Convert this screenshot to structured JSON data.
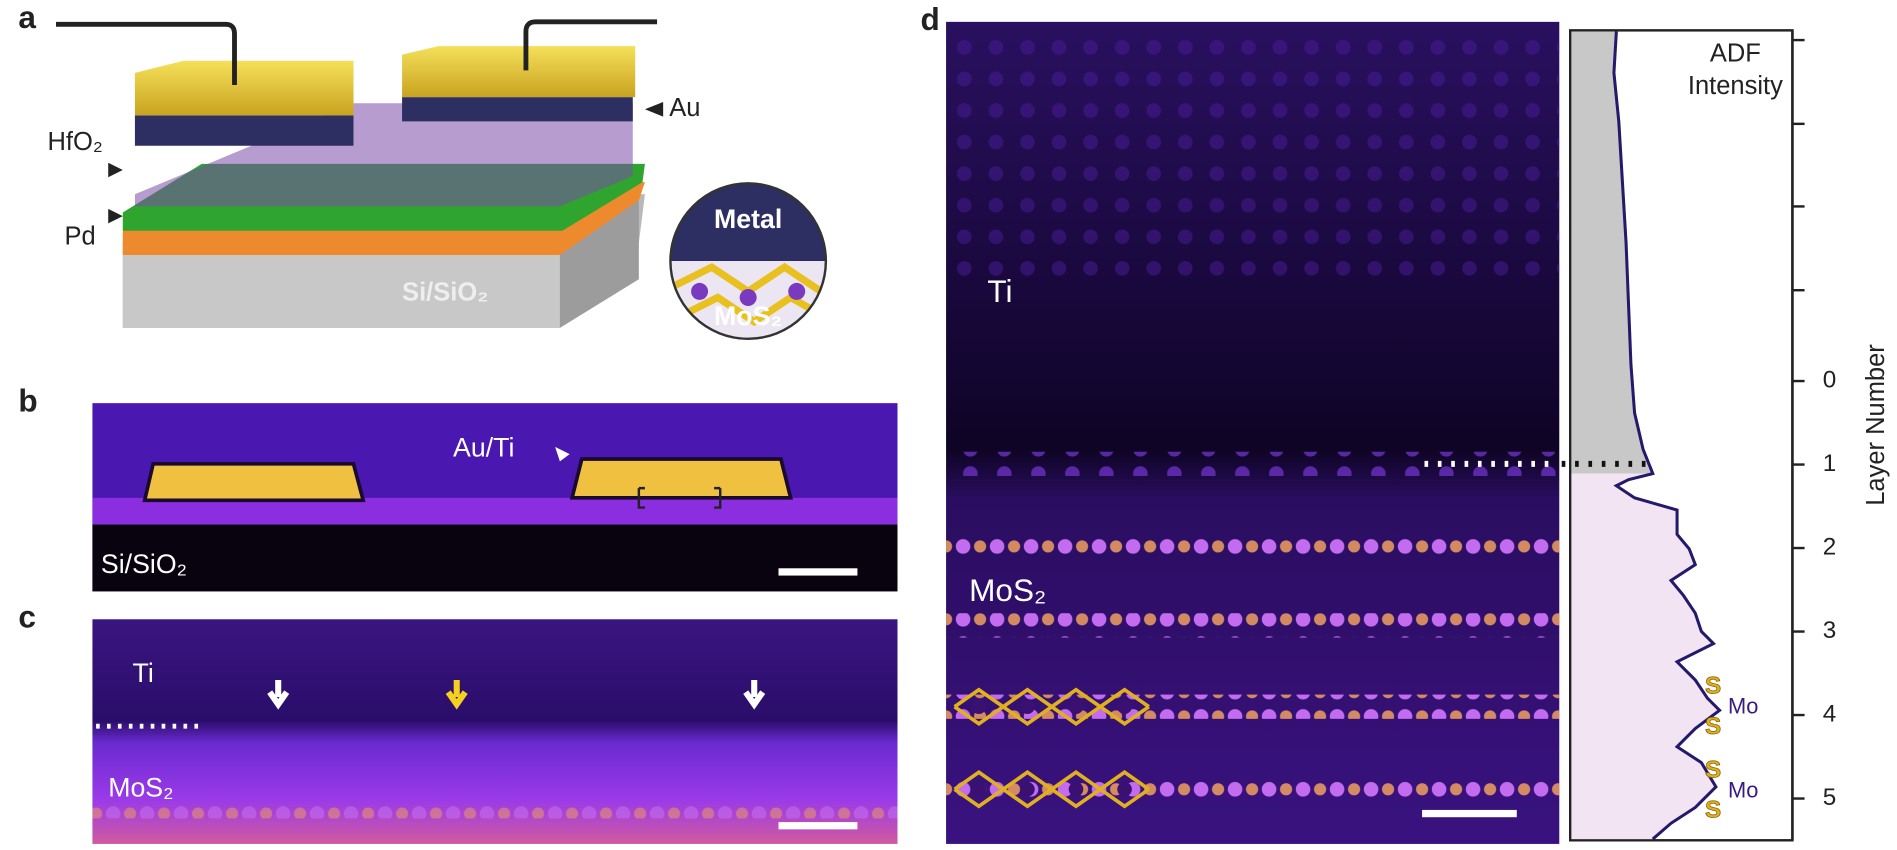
{
  "panel_a": {
    "label": "a",
    "au": "Au",
    "hfo2": "HfO₂",
    "pd": "Pd",
    "substrate": "Si/SiO₂",
    "metal": "Metal",
    "mos2": "MoS₂"
  },
  "panel_b": {
    "label": "b",
    "contact": "Au/Ti",
    "substrate": "Si/SiO₂"
  },
  "panel_c": {
    "label": "c",
    "ti": "Ti",
    "mos2": "MoS₂"
  },
  "panel_d": {
    "label": "d",
    "ti": "Ti",
    "mos2": "MoS₂",
    "profile_title": [
      "ADF",
      "Intensity"
    ],
    "atom_labels": [
      "S",
      "S",
      "Mo",
      "S",
      "S",
      "Mo"
    ],
    "layer_axis": {
      "title": "Layer Number",
      "ylim": [
        -4.2,
        5.5
      ],
      "ticks": [
        0,
        1,
        2,
        3,
        4,
        5
      ]
    }
  }
}
